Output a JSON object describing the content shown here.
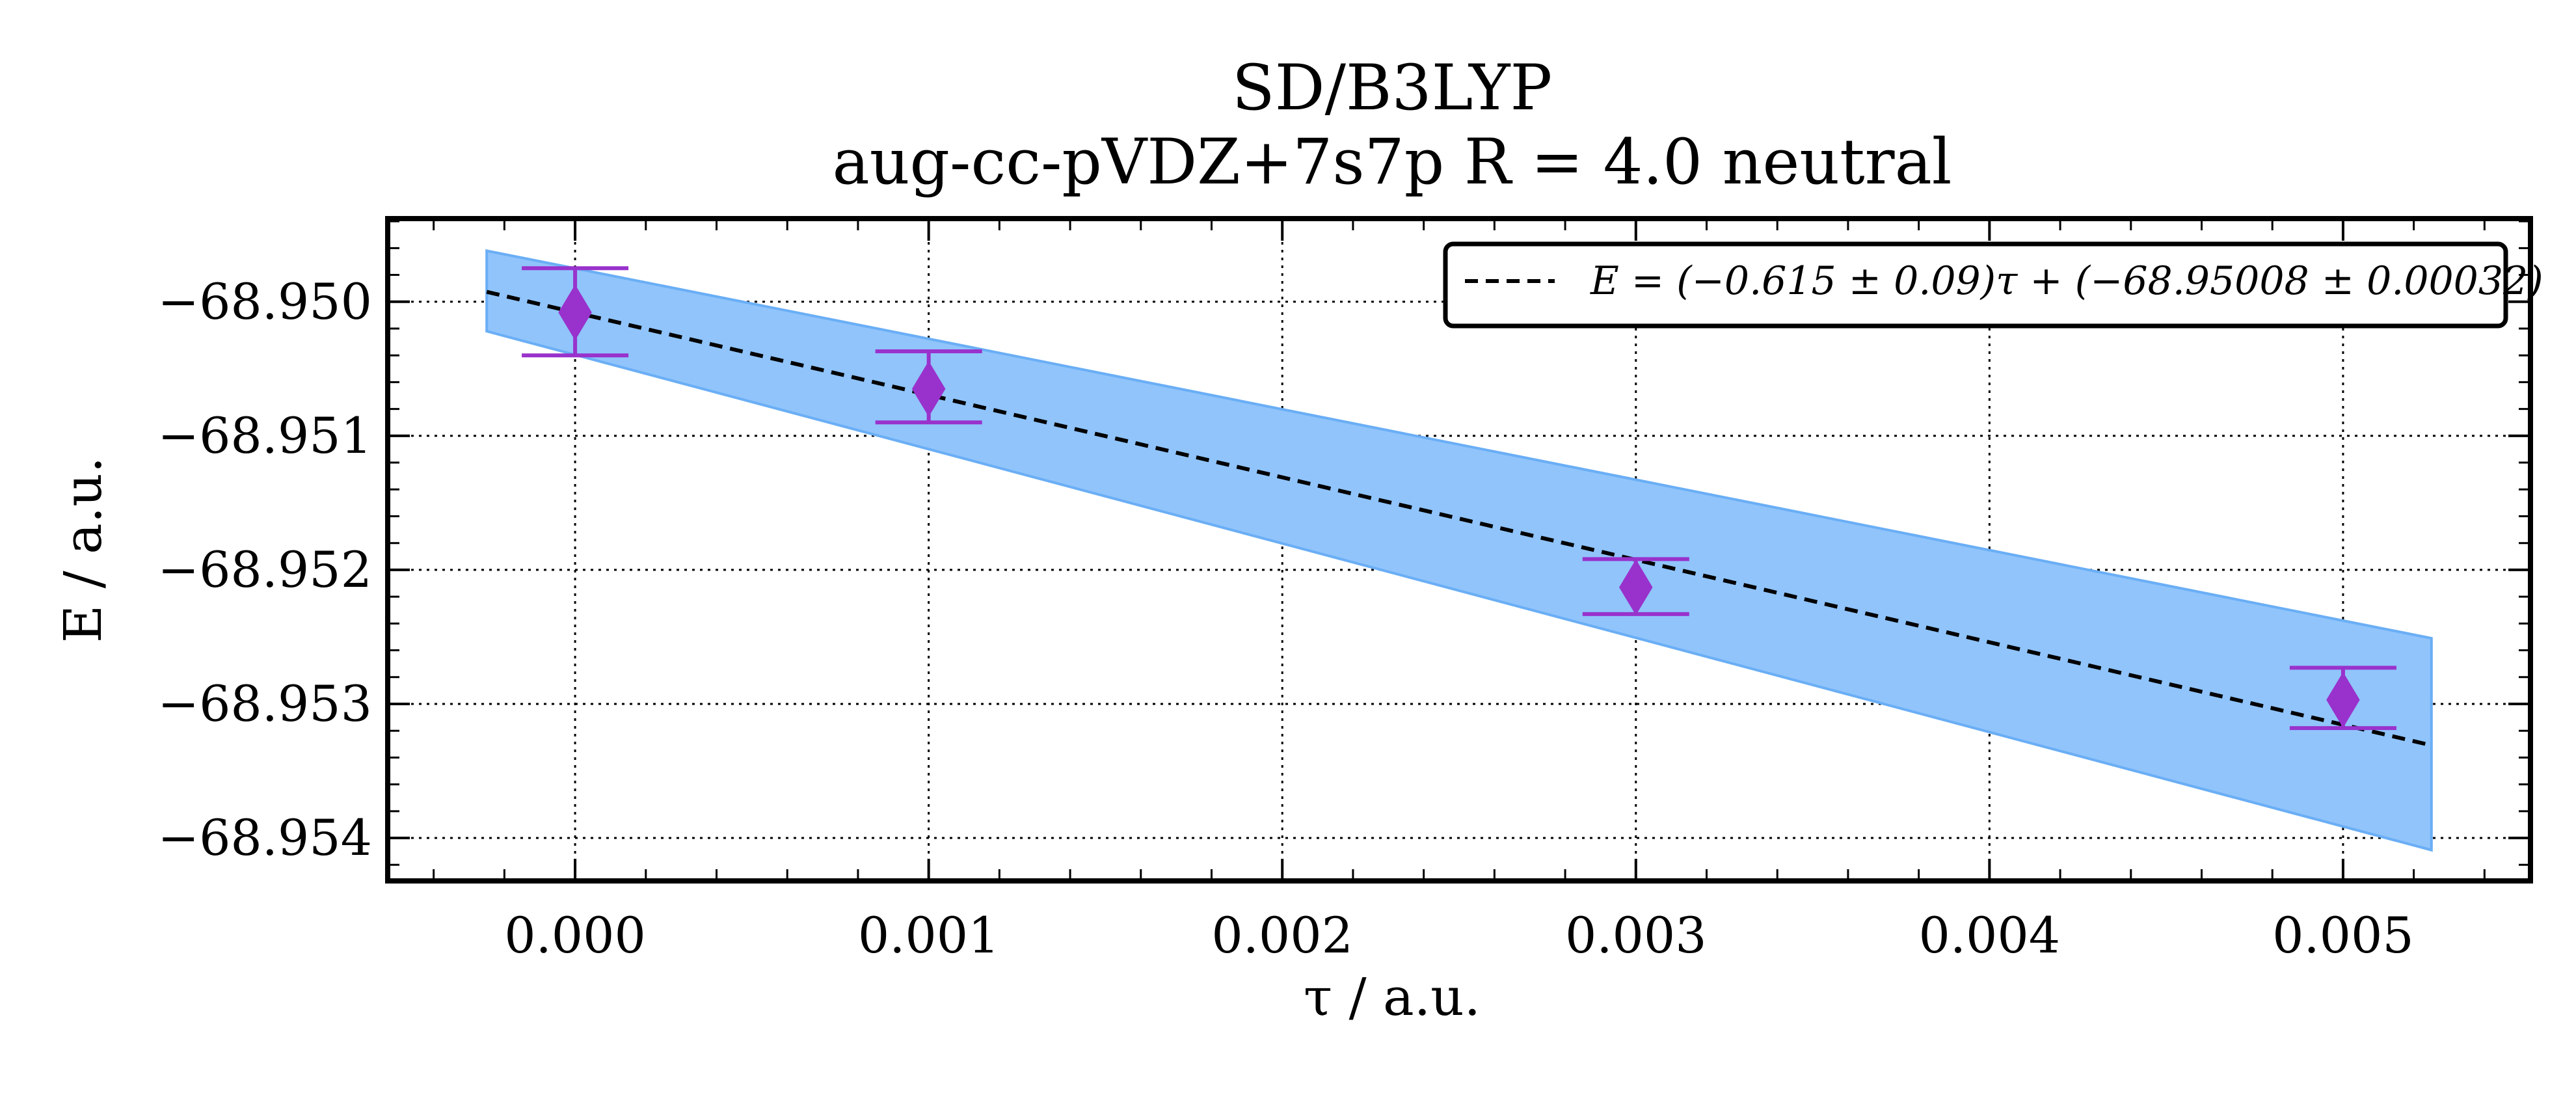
{
  "chart_data": {
    "type": "scatter",
    "title_line1": "SD/B3LYP",
    "title_line2": "aug-cc-pVDZ+7s7p R = 4.0 neutral",
    "xlabel": "τ / a.u.",
    "ylabel": "E / a.u.",
    "xlim": [
      -0.00053,
      0.00553
    ],
    "ylim": [
      -68.95432,
      -68.94938
    ],
    "xticks": [
      0.0,
      0.001,
      0.002,
      0.003,
      0.004,
      0.005
    ],
    "xtick_labels": [
      "0.000",
      "0.001",
      "0.002",
      "0.003",
      "0.004",
      "0.005"
    ],
    "yticks": [
      -68.95,
      -68.951,
      -68.952,
      -68.953,
      -68.954
    ],
    "ytick_labels": [
      "−68.950",
      "−68.951",
      "−68.952",
      "−68.953",
      "−68.954"
    ],
    "x_minor_step": 0.0002,
    "y_minor_step": 0.0002,
    "grid": true,
    "points": {
      "name": "data",
      "x": [
        0.0,
        0.001,
        0.003,
        0.005
      ],
      "y": [
        -68.95008,
        -68.95065,
        -68.95213,
        -68.95297
      ],
      "yerr_upper": [
        -68.94975,
        -68.95037,
        -68.95192,
        -68.95273
      ],
      "yerr_lower": [
        -68.9504,
        -68.9509,
        -68.95233,
        -68.95318
      ],
      "color": "#9932cc"
    },
    "fit": {
      "slope": -0.615,
      "intercept": -68.95008,
      "x_range": [
        -0.00025,
        0.00525
      ],
      "color": "#000000",
      "legend_label": "E = (−0.615 ± 0.09)τ + (−68.95008 ± 0.00032)"
    },
    "band": {
      "upper": [
        [
          -0.00025,
          -68.94962
        ],
        [
          0.00525,
          -68.95251
        ]
      ],
      "lower": [
        [
          -0.00025,
          -68.95022
        ],
        [
          0.00525,
          -68.95409
        ]
      ],
      "fill": "#90c4fb",
      "edge": "#6aaef5"
    },
    "legend_position": "top-right"
  }
}
